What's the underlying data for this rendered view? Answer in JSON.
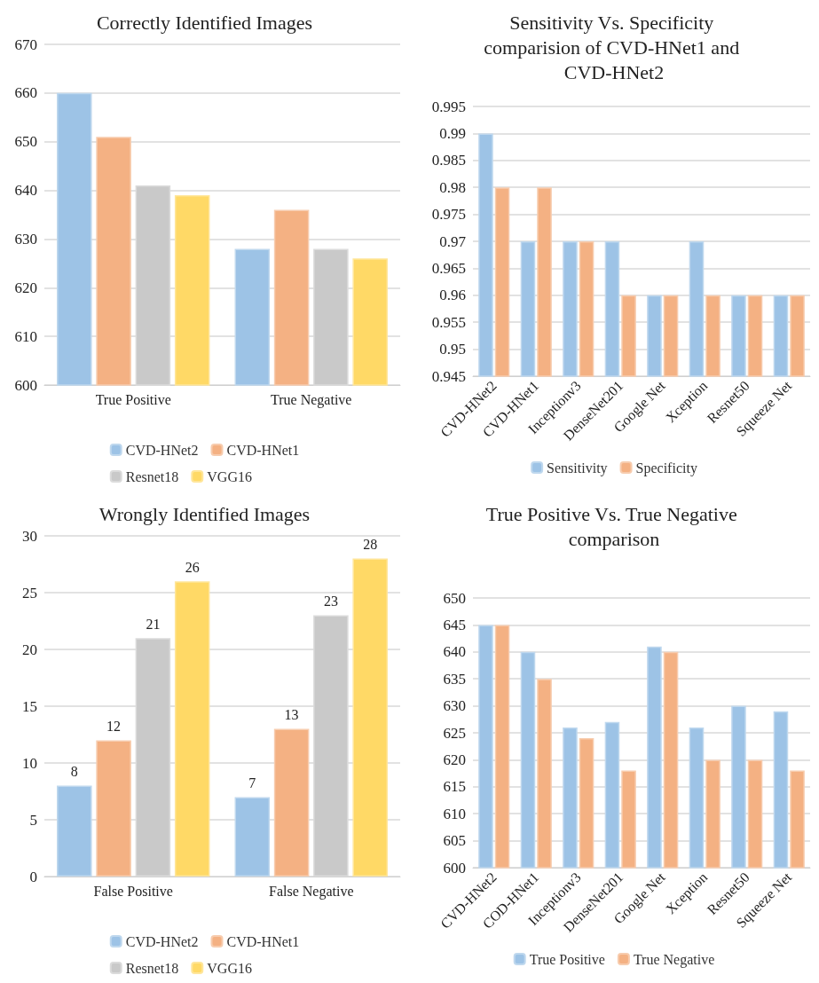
{
  "chart_data": [
    {
      "type": "bar",
      "title": "Correctly Identified Images",
      "categories": [
        "True Positive",
        "True Negative"
      ],
      "series": [
        {
          "name": "CVD-HNet2",
          "color": "#9dc3e6",
          "values": [
            660,
            628
          ]
        },
        {
          "name": "CVD-HNet1",
          "color": "#f4b183",
          "values": [
            651,
            636
          ]
        },
        {
          "name": "Resnet18",
          "color": "#c9c9c9",
          "values": [
            641,
            628
          ]
        },
        {
          "name": "VGG16",
          "color": "#ffd966",
          "values": [
            639,
            626
          ]
        }
      ],
      "ylim": [
        600,
        670
      ],
      "yticks": [
        600,
        610,
        620,
        630,
        640,
        650,
        660,
        670
      ],
      "grid": "y",
      "legend": "bottom"
    },
    {
      "type": "bar",
      "title": "Sensitivity Vs. Specificity comparision of CVD-HNet1 and CVD-HNet2",
      "categories": [
        "CVD-HNet2",
        "CVD-HNet1",
        "Inceptionv3",
        "DenseNet201",
        "Google Net",
        "Xception",
        "Resnet50",
        "Squeeze Net"
      ],
      "series": [
        {
          "name": "Sensitivity",
          "color": "#9dc3e6",
          "values": [
            0.99,
            0.97,
            0.97,
            0.97,
            0.96,
            0.97,
            0.96,
            0.96
          ]
        },
        {
          "name": "Specificity",
          "color": "#f4b183",
          "values": [
            0.98,
            0.98,
            0.97,
            0.96,
            0.96,
            0.96,
            0.96,
            0.96
          ]
        }
      ],
      "ylim": [
        0.945,
        0.995
      ],
      "yticks": [
        0.945,
        0.95,
        0.955,
        0.96,
        0.965,
        0.97,
        0.975,
        0.98,
        0.985,
        0.99,
        0.995
      ],
      "grid": "y",
      "legend": "bottom"
    },
    {
      "type": "bar",
      "title": "Wrongly Identified Images",
      "categories": [
        "False Positive",
        "False Negative"
      ],
      "series": [
        {
          "name": "CVD-HNet2",
          "color": "#9dc3e6",
          "values": [
            8,
            7
          ]
        },
        {
          "name": "CVD-HNet1",
          "color": "#f4b183",
          "values": [
            12,
            13
          ]
        },
        {
          "name": "Resnet18",
          "color": "#c9c9c9",
          "values": [
            21,
            23
          ]
        },
        {
          "name": "VGG16",
          "color": "#ffd966",
          "values": [
            26,
            28
          ]
        }
      ],
      "ylim": [
        0,
        30
      ],
      "yticks": [
        0,
        5,
        10,
        15,
        20,
        25,
        30
      ],
      "grid": "y",
      "legend": "bottom",
      "data_labels": true
    },
    {
      "type": "bar",
      "title": "True Positive Vs. True Negative comparison",
      "categories": [
        "CVD-HNet2",
        "COD-HNet1",
        "Inceptionv3",
        "DenseNet201",
        "Google Net",
        "Xception",
        "Resnet50",
        "Squeeze Net"
      ],
      "series": [
        {
          "name": "True Positive",
          "color": "#9dc3e6",
          "values": [
            645,
            640,
            626,
            627,
            641,
            626,
            630,
            629
          ]
        },
        {
          "name": "True Negative",
          "color": "#f4b183",
          "values": [
            645,
            635,
            624,
            618,
            640,
            620,
            620,
            618
          ]
        }
      ],
      "ylim": [
        600,
        650
      ],
      "yticks": [
        600,
        605,
        610,
        615,
        620,
        625,
        630,
        635,
        640,
        645,
        650
      ],
      "grid": "y",
      "legend": "bottom"
    }
  ]
}
